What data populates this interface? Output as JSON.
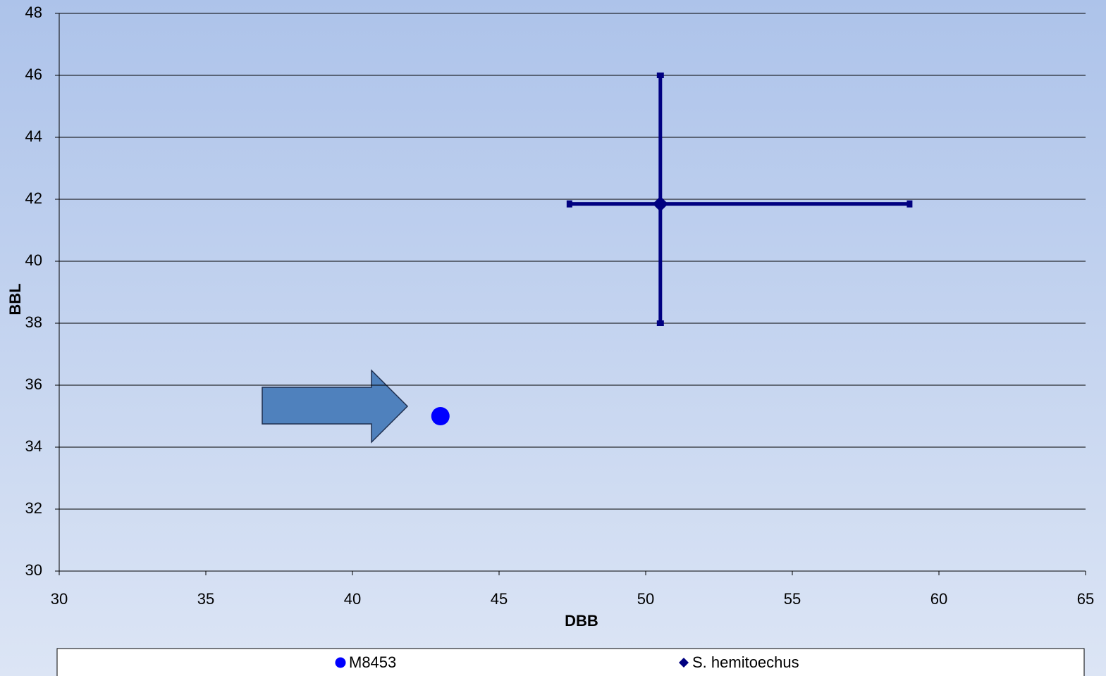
{
  "chart_data": {
    "type": "scatter",
    "xlabel": "DBB",
    "ylabel": "BBL",
    "xlim": [
      30,
      65
    ],
    "xticks": [
      30,
      35,
      40,
      45,
      50,
      55,
      60,
      65
    ],
    "ylim": [
      30,
      48
    ],
    "yticks": [
      30,
      32,
      34,
      36,
      38,
      40,
      42,
      44,
      46,
      48
    ],
    "grid": true,
    "legend": "bottom",
    "series": [
      {
        "name": "M8453",
        "color": "#0000ff",
        "marker": "circle",
        "x": [
          43
        ],
        "values": [
          35
        ]
      },
      {
        "name": "S. hemitoechus",
        "color": "#000080",
        "marker": "diamond",
        "x": [
          50.5
        ],
        "values": [
          41.85
        ],
        "x_low": [
          47.4
        ],
        "x_high": [
          59
        ],
        "y_low": [
          38
        ],
        "y_high": [
          46
        ]
      }
    ]
  }
}
